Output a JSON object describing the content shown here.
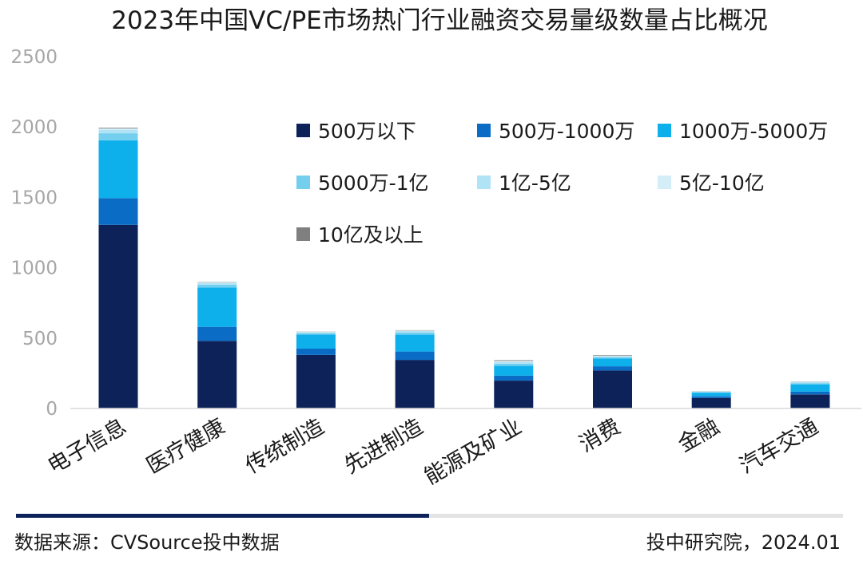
{
  "chart_data": {
    "type": "stacked-bar",
    "title": "2023年中国VC/PE市场热门行业融资交易量级数量占比概况",
    "xlabel": "",
    "ylabel": "",
    "ylim": [
      0,
      2500
    ],
    "yticks": [
      0,
      500,
      1000,
      1500,
      2000,
      2500
    ],
    "categories": [
      "电子信息",
      "医疗健康",
      "传统制造",
      "先进制造",
      "能源及矿业",
      "消费",
      "金融",
      "汽车交通"
    ],
    "series": [
      {
        "name": "500万以下",
        "color": "#0d2259",
        "values": [
          1305,
          480,
          380,
          345,
          198,
          270,
          75,
          100
        ]
      },
      {
        "name": "500万-1000万",
        "color": "#0a6cc4",
        "values": [
          190,
          100,
          45,
          60,
          35,
          30,
          12,
          20
        ]
      },
      {
        "name": "1000万-5000万",
        "color": "#0eb0ec",
        "values": [
          410,
          280,
          100,
          120,
          70,
          55,
          25,
          50
        ]
      },
      {
        "name": "5000万-1亿",
        "color": "#74cfee",
        "values": [
          50,
          20,
          10,
          15,
          15,
          10,
          5,
          10
        ]
      },
      {
        "name": "1亿-5亿",
        "color": "#b0e3f5",
        "values": [
          25,
          12,
          7,
          10,
          12,
          5,
          3,
          8
        ]
      },
      {
        "name": "5亿-10亿",
        "color": "#d4eef8",
        "values": [
          10,
          5,
          3,
          4,
          8,
          4,
          2,
          4
        ]
      },
      {
        "name": "10亿及以上",
        "color": "#7f7f7f",
        "values": [
          5,
          2,
          1,
          2,
          5,
          4,
          1,
          1
        ]
      }
    ],
    "legend_position": "top-right",
    "grid": false
  },
  "footer": {
    "source": "数据来源：CVSource投中数据",
    "credit": "投中研究院，2024.01"
  }
}
